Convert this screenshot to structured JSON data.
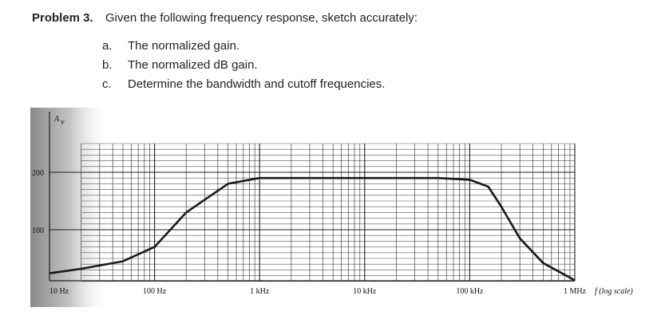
{
  "problem": {
    "label": "Problem 3.",
    "text": "Given the following frequency response, sketch accurately:",
    "items": [
      {
        "letter": "a.",
        "text": "The normalized gain."
      },
      {
        "letter": "b.",
        "text": "The normalized dB gain."
      },
      {
        "letter": "c.",
        "text": "Determine the bandwidth and cutoff frequencies."
      }
    ]
  },
  "chart_data": {
    "type": "line",
    "x_label": "f (log scale)",
    "y_label": "A",
    "y_label_subscript": "v",
    "x": [
      10,
      20,
      50,
      100,
      200,
      500,
      1000,
      2000,
      10000,
      50000,
      100000,
      150000,
      200000,
      300000,
      500000,
      1000000
    ],
    "values": [
      24,
      32,
      45,
      70,
      130,
      180,
      190,
      190,
      190,
      190,
      187,
      175,
      140,
      85,
      42,
      12
    ],
    "color": "#1a1a1a",
    "log_x": true,
    "grid": true,
    "xlim": [
      10,
      1000000
    ],
    "xticks": [
      {
        "value": 10,
        "label": "10 Hz"
      },
      {
        "value": 100,
        "label": "100 Hz"
      },
      {
        "value": 1000,
        "label": "1 kHz"
      },
      {
        "value": 10000,
        "label": "10 kHz"
      },
      {
        "value": 100000,
        "label": "100 kHz"
      },
      {
        "value": 1000000,
        "label": "1 MHz"
      }
    ],
    "ylim": [
      0,
      250
    ],
    "yticks": [
      100,
      200
    ]
  }
}
